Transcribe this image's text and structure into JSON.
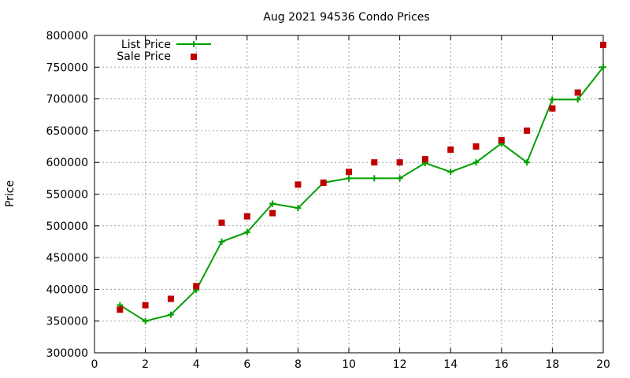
{
  "chart_data": {
    "type": "line",
    "title": "Aug 2021 94536 Condo Prices",
    "xlabel": "",
    "ylabel": "Price",
    "xlim": [
      0,
      20
    ],
    "ylim": [
      300000,
      800000
    ],
    "xticks": [
      "0",
      "2",
      "4",
      "6",
      "8",
      "10",
      "12",
      "14",
      "16",
      "18",
      "20"
    ],
    "yticks": [
      "300000",
      "350000",
      "400000",
      "450000",
      "500000",
      "550000",
      "600000",
      "650000",
      "700000",
      "750000",
      "800000"
    ],
    "grid": true,
    "legend_position": "top-left",
    "x": [
      1,
      2,
      3,
      4,
      5,
      6,
      7,
      8,
      9,
      10,
      11,
      12,
      13,
      14,
      15,
      16,
      17,
      18,
      19,
      20
    ],
    "series": [
      {
        "name": "List Price",
        "style": "line-with-plus-markers",
        "color": "#00a000",
        "values": [
          375000,
          350000,
          360000,
          399000,
          475000,
          490000,
          535000,
          528000,
          568000,
          575000,
          575000,
          575000,
          599000,
          585000,
          600000,
          630000,
          600000,
          699000,
          699000,
          750000
        ]
      },
      {
        "name": "Sale Price",
        "style": "square-markers",
        "color": "#c00000",
        "values": [
          368000,
          375000,
          385000,
          405000,
          505000,
          515000,
          520000,
          565000,
          568000,
          585000,
          600000,
          600000,
          605000,
          620000,
          625000,
          635000,
          650000,
          685000,
          710000,
          785000
        ]
      }
    ]
  }
}
